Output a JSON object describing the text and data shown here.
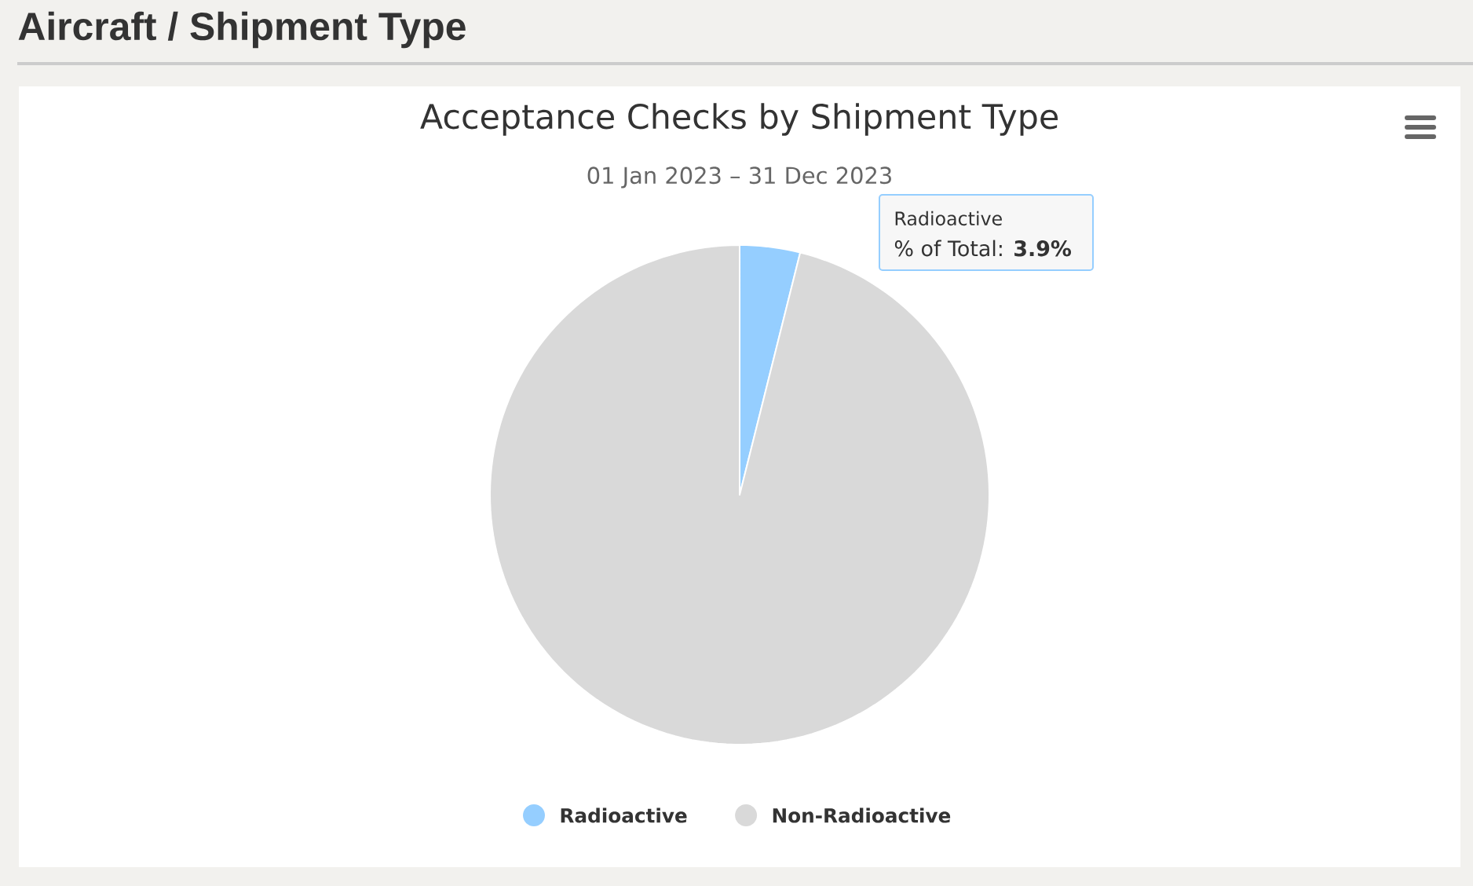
{
  "chart_data": {
    "type": "pie",
    "title": "Acceptance Checks by Shipment Type",
    "subtitle": "01 Jan 2023 – 31 Dec 2023",
    "categories": [
      "Radioactive",
      "Non-Radioactive"
    ],
    "values": [
      3.9,
      96.1
    ],
    "colors": [
      "#95ceff",
      "#d9d9d9"
    ],
    "legend": "bottom",
    "annotations": [
      "Aircraft / Shipment Type",
      "Radioactive",
      "% of Total: **3.9%**"
    ]
  }
}
